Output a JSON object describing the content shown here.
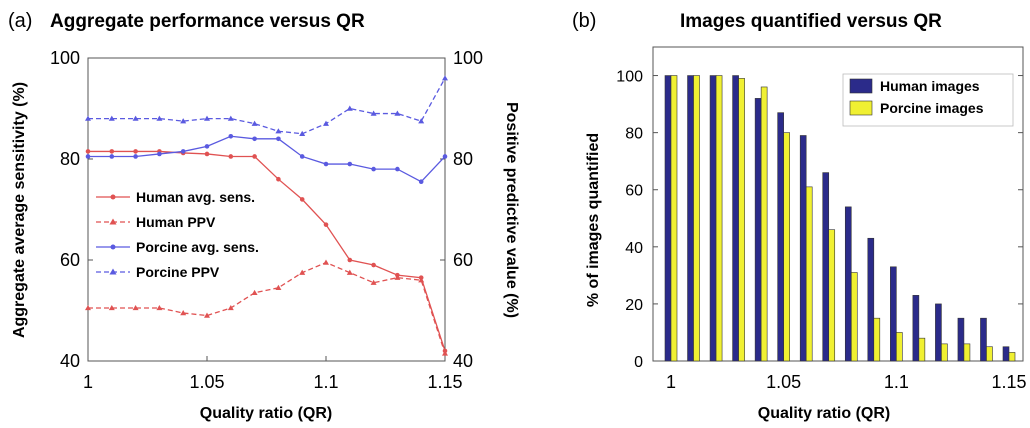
{
  "chart_data": [
    {
      "type": "line",
      "panel_label": "(a)",
      "title": "Aggregate performance versus QR",
      "xlabel": "Quality ratio (QR)",
      "ylabel": "Aggregate average sensitivity (%)",
      "ylabel_right": "Positive predictive value (%)",
      "xlim": [
        1,
        1.15
      ],
      "ylim": [
        40,
        100
      ],
      "ylim_right": [
        40,
        100
      ],
      "xticks": [
        "1",
        "1.05",
        "1.1",
        "1.15"
      ],
      "yticks": [
        "40",
        "60",
        "80",
        "100"
      ],
      "yticks_right": [
        "40",
        "60",
        "80",
        "100"
      ],
      "grid": false,
      "legend_position": "center-left",
      "x": [
        1.0,
        1.01,
        1.02,
        1.03,
        1.04,
        1.05,
        1.06,
        1.07,
        1.08,
        1.09,
        1.1,
        1.11,
        1.12,
        1.13,
        1.14,
        1.15
      ],
      "series": [
        {
          "name": "Human avg. sens.",
          "color": "#e05252",
          "style": "solid",
          "marker": "circle",
          "values": [
            81.5,
            81.5,
            81.5,
            81.5,
            81.2,
            81.0,
            80.5,
            80.5,
            76,
            72,
            67,
            60,
            59,
            57,
            56.5,
            42
          ]
        },
        {
          "name": "Human PPV",
          "color": "#e05252",
          "style": "dashed",
          "marker": "triangle",
          "values": [
            50.5,
            50.5,
            50.5,
            50.5,
            49.5,
            49,
            50.5,
            53.5,
            54.5,
            57.5,
            59.5,
            57.5,
            55.5,
            56.5,
            56,
            41.5
          ]
        },
        {
          "name": "Porcine avg. sens.",
          "color": "#5a5ae0",
          "style": "solid",
          "marker": "circle",
          "values": [
            80.5,
            80.5,
            80.5,
            81,
            81.5,
            82.5,
            84.5,
            84,
            84,
            80.5,
            79,
            79,
            78,
            78,
            75.5,
            80.5
          ]
        },
        {
          "name": "Porcine PPV",
          "color": "#5a5ae0",
          "style": "dashed",
          "marker": "triangle",
          "values": [
            88,
            88,
            88,
            88,
            87.5,
            88,
            88,
            87,
            85.5,
            85,
            87,
            90,
            89,
            89,
            87.5,
            96
          ]
        }
      ]
    },
    {
      "type": "bar",
      "panel_label": "(b)",
      "title": "Images quantified versus QR",
      "xlabel": "Quality ratio (QR)",
      "ylabel": "% of images quantified",
      "xlim": [
        1,
        1.15
      ],
      "ylim": [
        0,
        110
      ],
      "xticks": [
        "1",
        "1.05",
        "1.1",
        "1.15"
      ],
      "yticks": [
        "0",
        "20",
        "40",
        "60",
        "80",
        "100"
      ],
      "grid": false,
      "legend_position": "top-right",
      "x": [
        1.0,
        1.01,
        1.02,
        1.03,
        1.04,
        1.05,
        1.06,
        1.07,
        1.08,
        1.09,
        1.1,
        1.11,
        1.12,
        1.13,
        1.14,
        1.15
      ],
      "series": [
        {
          "name": "Human images",
          "color": "#2b2b8a",
          "values": [
            100,
            100,
            100,
            100,
            92,
            87,
            79,
            66,
            54,
            43,
            33,
            23,
            20,
            15,
            15,
            5
          ]
        },
        {
          "name": "Porcine images",
          "color": "#f0f032",
          "values": [
            100,
            100,
            100,
            99,
            96,
            80,
            61,
            46,
            31,
            15,
            10,
            8,
            6,
            6,
            5,
            3
          ]
        }
      ]
    }
  ]
}
